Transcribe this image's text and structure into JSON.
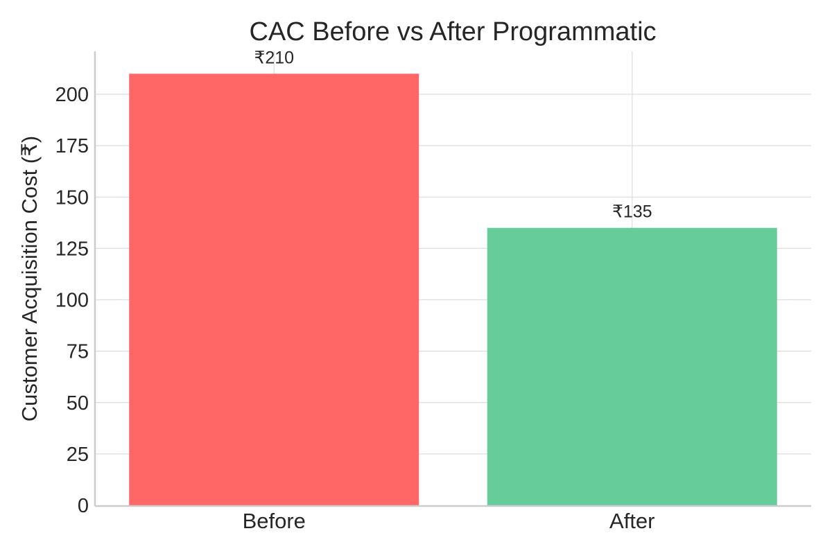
{
  "chart_data": {
    "type": "bar",
    "title": "CAC Before vs After Programmatic",
    "xlabel": "",
    "ylabel": "Customer Acquisition Cost (₹)",
    "categories": [
      "Before",
      "After"
    ],
    "values": [
      210,
      135
    ],
    "value_labels": [
      "₹210",
      "₹135"
    ],
    "colors": [
      "#ff6666",
      "#66cc99"
    ],
    "ylim": [
      0,
      220
    ],
    "yticks": [
      0,
      25,
      50,
      75,
      100,
      125,
      150,
      175,
      200
    ],
    "ytick_labels": [
      "0",
      "25",
      "50",
      "75",
      "100",
      "125",
      "150",
      "175",
      "200"
    ],
    "grid": true,
    "legend": "none"
  }
}
